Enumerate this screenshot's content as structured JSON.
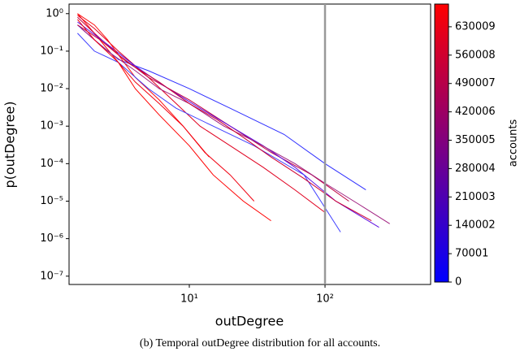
{
  "chart_data": {
    "type": "line",
    "xlabel": "outDegree",
    "ylabel": "p(outDegree)",
    "caption": "(b) Temporal outDegree distribution for all accounts.",
    "xscale": "log",
    "yscale": "log",
    "xlim": [
      1.3,
      600
    ],
    "ylim": [
      6e-08,
      1.8
    ],
    "xticks": [
      {
        "value": 10,
        "label": "10¹"
      },
      {
        "value": 100,
        "label": "10²"
      }
    ],
    "yticks": [
      {
        "value": 1,
        "label": "10⁰"
      },
      {
        "value": 0.1,
        "label": "10⁻¹"
      },
      {
        "value": 0.01,
        "label": "10⁻²"
      },
      {
        "value": 0.001,
        "label": "10⁻³"
      },
      {
        "value": 0.0001,
        "label": "10⁻⁴"
      },
      {
        "value": 1e-05,
        "label": "10⁻⁵"
      },
      {
        "value": 1e-06,
        "label": "10⁻⁶"
      },
      {
        "value": 1e-07,
        "label": "10⁻⁷"
      }
    ],
    "vline": {
      "x": 100,
      "color": "#999999"
    },
    "series": [
      {
        "color": "#ff0000",
        "x": [
          1.5,
          2,
          3,
          4,
          6,
          10,
          15,
          25,
          40
        ],
        "values": [
          1,
          0.3,
          0.05,
          0.01,
          0.002,
          0.0003,
          5e-05,
          1e-05,
          3e-06
        ]
      },
      {
        "color": "#e0001f",
        "x": [
          1.5,
          2,
          3,
          5,
          8,
          12,
          20,
          35,
          60,
          100
        ],
        "values": [
          0.9,
          0.4,
          0.1,
          0.02,
          0.004,
          0.001,
          0.0003,
          8e-05,
          2e-05,
          5e-06
        ]
      },
      {
        "color": "#c00040",
        "x": [
          1.5,
          2,
          3,
          5,
          10,
          20,
          40,
          80,
          150
        ],
        "values": [
          0.8,
          0.3,
          0.08,
          0.02,
          0.005,
          0.001,
          0.0002,
          5e-05,
          1e-05
        ]
      },
      {
        "color": "#3030ff",
        "x": [
          1.5,
          2,
          3,
          5,
          10,
          20,
          50,
          100,
          200
        ],
        "values": [
          0.5,
          0.2,
          0.06,
          0.03,
          0.01,
          0.003,
          0.0006,
          0.0001,
          2e-05
        ]
      },
      {
        "color": "#6010e0",
        "x": [
          1.5,
          2.5,
          4,
          7,
          12,
          20,
          35,
          60,
          120,
          250
        ],
        "values": [
          0.6,
          0.15,
          0.04,
          0.01,
          0.003,
          0.001,
          0.0003,
          8e-05,
          1e-05,
          2e-06
        ]
      },
      {
        "color": "#ff1010",
        "x": [
          1.5,
          2,
          2.5,
          3,
          4,
          6,
          9,
          14
        ],
        "values": [
          1,
          0.5,
          0.2,
          0.08,
          0.02,
          0.005,
          0.001,
          0.00015
        ]
      },
      {
        "color": "#a02080",
        "x": [
          1.6,
          2.5,
          4,
          6,
          10,
          18,
          30,
          60,
          100,
          180,
          300
        ],
        "values": [
          0.4,
          0.1,
          0.03,
          0.01,
          0.004,
          0.001,
          0.0004,
          0.0001,
          3e-05,
          8e-06,
          2.5e-06
        ]
      },
      {
        "color": "#4040ff",
        "x": [
          1.5,
          2,
          3,
          5,
          8,
          15,
          30,
          70,
          130
        ],
        "values": [
          0.3,
          0.1,
          0.05,
          0.01,
          0.003,
          0.001,
          0.0003,
          5e-05,
          1.5e-06
        ]
      },
      {
        "color": "#f00010",
        "x": [
          1.5,
          2,
          3,
          4,
          6,
          9,
          13,
          20,
          30
        ],
        "values": [
          0.7,
          0.2,
          0.05,
          0.015,
          0.004,
          0.001,
          0.0002,
          5e-05,
          1e-05
        ]
      },
      {
        "color": "#d00030",
        "x": [
          1.5,
          2.2,
          3.5,
          6,
          10,
          16,
          25,
          40,
          70,
          120,
          220
        ],
        "values": [
          0.5,
          0.2,
          0.05,
          0.015,
          0.004,
          0.0015,
          0.0005,
          0.00015,
          4e-05,
          1e-05,
          3e-06
        ]
      }
    ],
    "colorbar": {
      "label": "accounts",
      "cmap": [
        "#0000ff",
        "#ff0000"
      ],
      "lim": [
        0,
        686000
      ],
      "ticks": [
        0,
        70001,
        140002,
        210003,
        280004,
        350005,
        420006,
        490007,
        560008,
        630009
      ]
    }
  }
}
